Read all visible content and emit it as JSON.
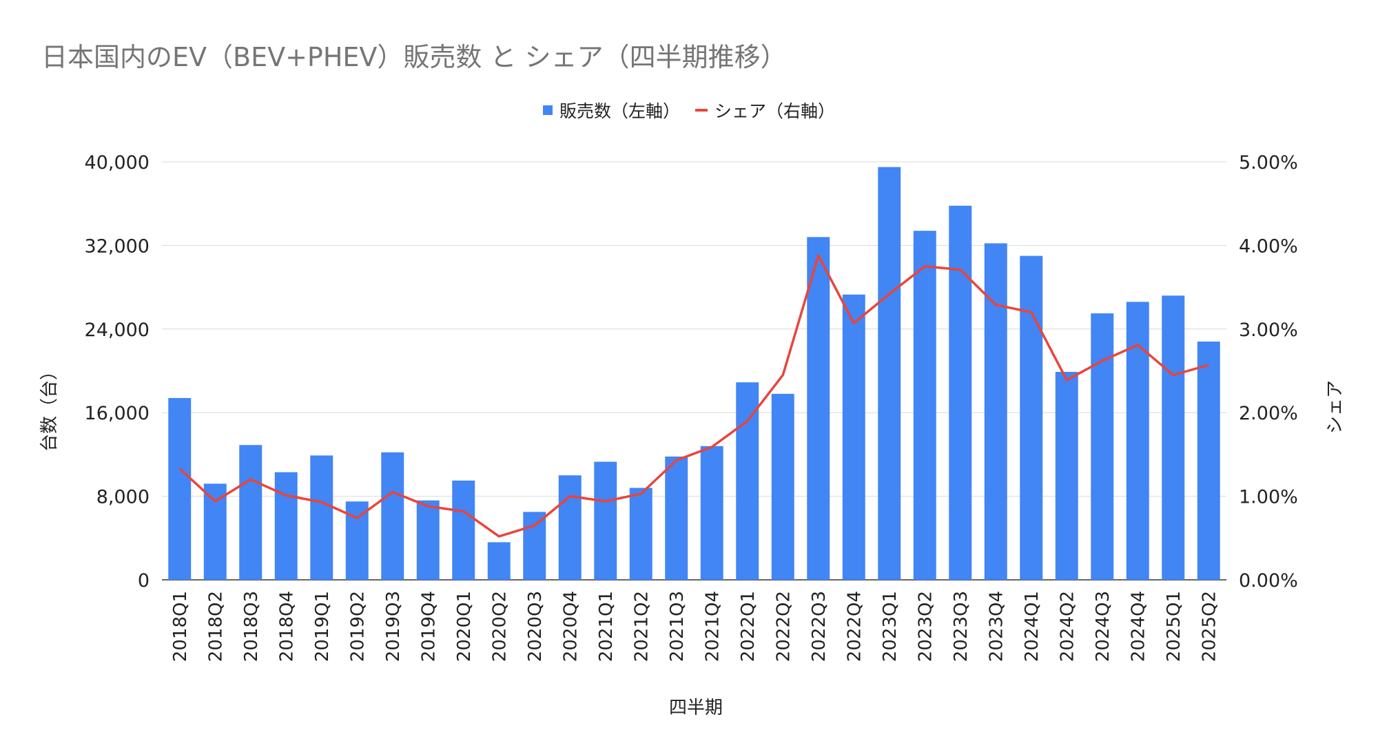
{
  "colors": {
    "bar": "#4285f4",
    "line": "#e8453c",
    "grid": "#d9d9d9",
    "axis_text": "#222222",
    "title": "#757575"
  },
  "chart_data": {
    "type": "bar",
    "title": "日本国内のEV（BEV+PHEV）販売数 と シェア（四半期推移）",
    "xlabel": "四半期",
    "ylabel": "台数（台）",
    "y2label": "シェア",
    "ylim": [
      0,
      40000
    ],
    "y2lim": [
      0,
      0.05
    ],
    "yticks": [
      "0",
      "8,000",
      "16,000",
      "24,000",
      "32,000",
      "40,000"
    ],
    "y2ticks": [
      "0.00%",
      "1.00%",
      "2.00%",
      "3.00%",
      "4.00%",
      "5.00%"
    ],
    "grid": true,
    "legend_position": "top-center",
    "categories": [
      "2018Q1",
      "2018Q2",
      "2018Q3",
      "2018Q4",
      "2019Q1",
      "2019Q2",
      "2019Q3",
      "2019Q4",
      "2020Q1",
      "2020Q2",
      "2020Q3",
      "2020Q4",
      "2021Q1",
      "2021Q2",
      "2021Q3",
      "2021Q4",
      "2022Q1",
      "2022Q2",
      "2022Q3",
      "2022Q4",
      "2023Q1",
      "2023Q2",
      "2023Q3",
      "2023Q4",
      "2024Q1",
      "2024Q2",
      "2024Q3",
      "2024Q4",
      "2025Q1",
      "2025Q2"
    ],
    "series": [
      {
        "name": "販売数（左軸）",
        "kind": "bar",
        "axis": "left",
        "values": [
          17400,
          9200,
          12900,
          10300,
          11900,
          7500,
          12200,
          7600,
          9500,
          3600,
          6500,
          10000,
          11300,
          8800,
          11800,
          12800,
          18900,
          17800,
          32800,
          27300,
          39500,
          33400,
          35800,
          32200,
          31000,
          19900,
          25500,
          26600,
          27200,
          22800
        ]
      },
      {
        "name": "シェア（右軸）",
        "kind": "line",
        "axis": "right",
        "values": [
          0.0133,
          0.0094,
          0.012,
          0.0101,
          0.0093,
          0.0074,
          0.0105,
          0.0088,
          0.0082,
          0.0052,
          0.0065,
          0.01,
          0.0094,
          0.0103,
          0.0143,
          0.0159,
          0.019,
          0.0245,
          0.0388,
          0.0307,
          0.0342,
          0.0375,
          0.0371,
          0.0329,
          0.032,
          0.0239,
          0.0262,
          0.0281,
          0.0245,
          0.0257
        ]
      }
    ]
  }
}
